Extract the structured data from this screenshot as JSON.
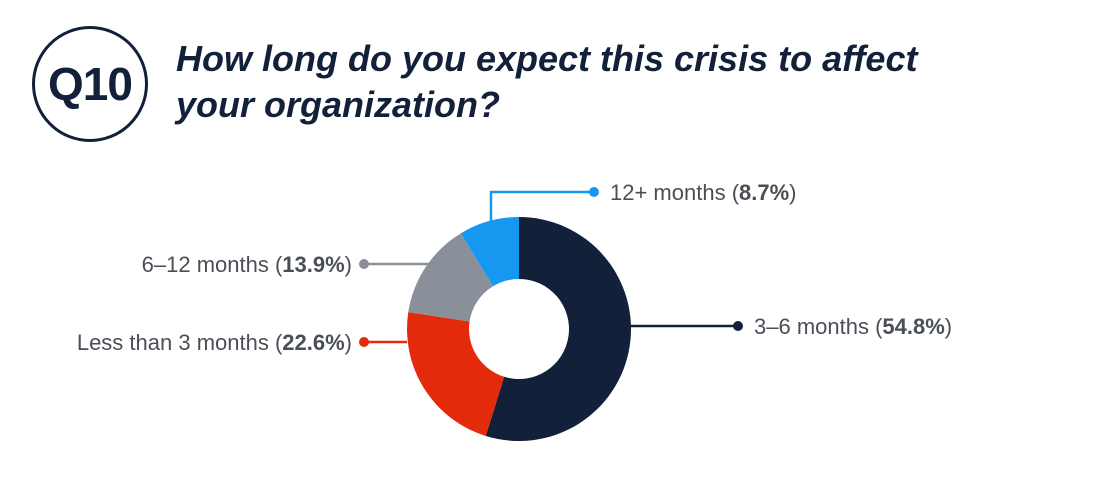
{
  "header": {
    "badge": "Q10",
    "question": "How long do you expect this crisis to affect your organization?"
  },
  "chart_data": {
    "type": "pie",
    "donut": true,
    "title": "How long do you expect this crisis to affect your organization?",
    "slices": [
      {
        "key": "m3_6",
        "label": "3–6 months",
        "value": 54.8,
        "pct_text": "54.8%",
        "color": "#13203a"
      },
      {
        "key": "lt3",
        "label": "Less than 3 months",
        "value": 22.6,
        "pct_text": "22.6%",
        "color": "#e32b0b"
      },
      {
        "key": "m6_12",
        "label": "6–12 months",
        "value": 13.9,
        "pct_text": "13.9%",
        "color": "#8a9099"
      },
      {
        "key": "m12p",
        "label": "12+ months",
        "value": 8.7,
        "pct_text": "8.7%",
        "color": "#1798f0"
      }
    ]
  }
}
